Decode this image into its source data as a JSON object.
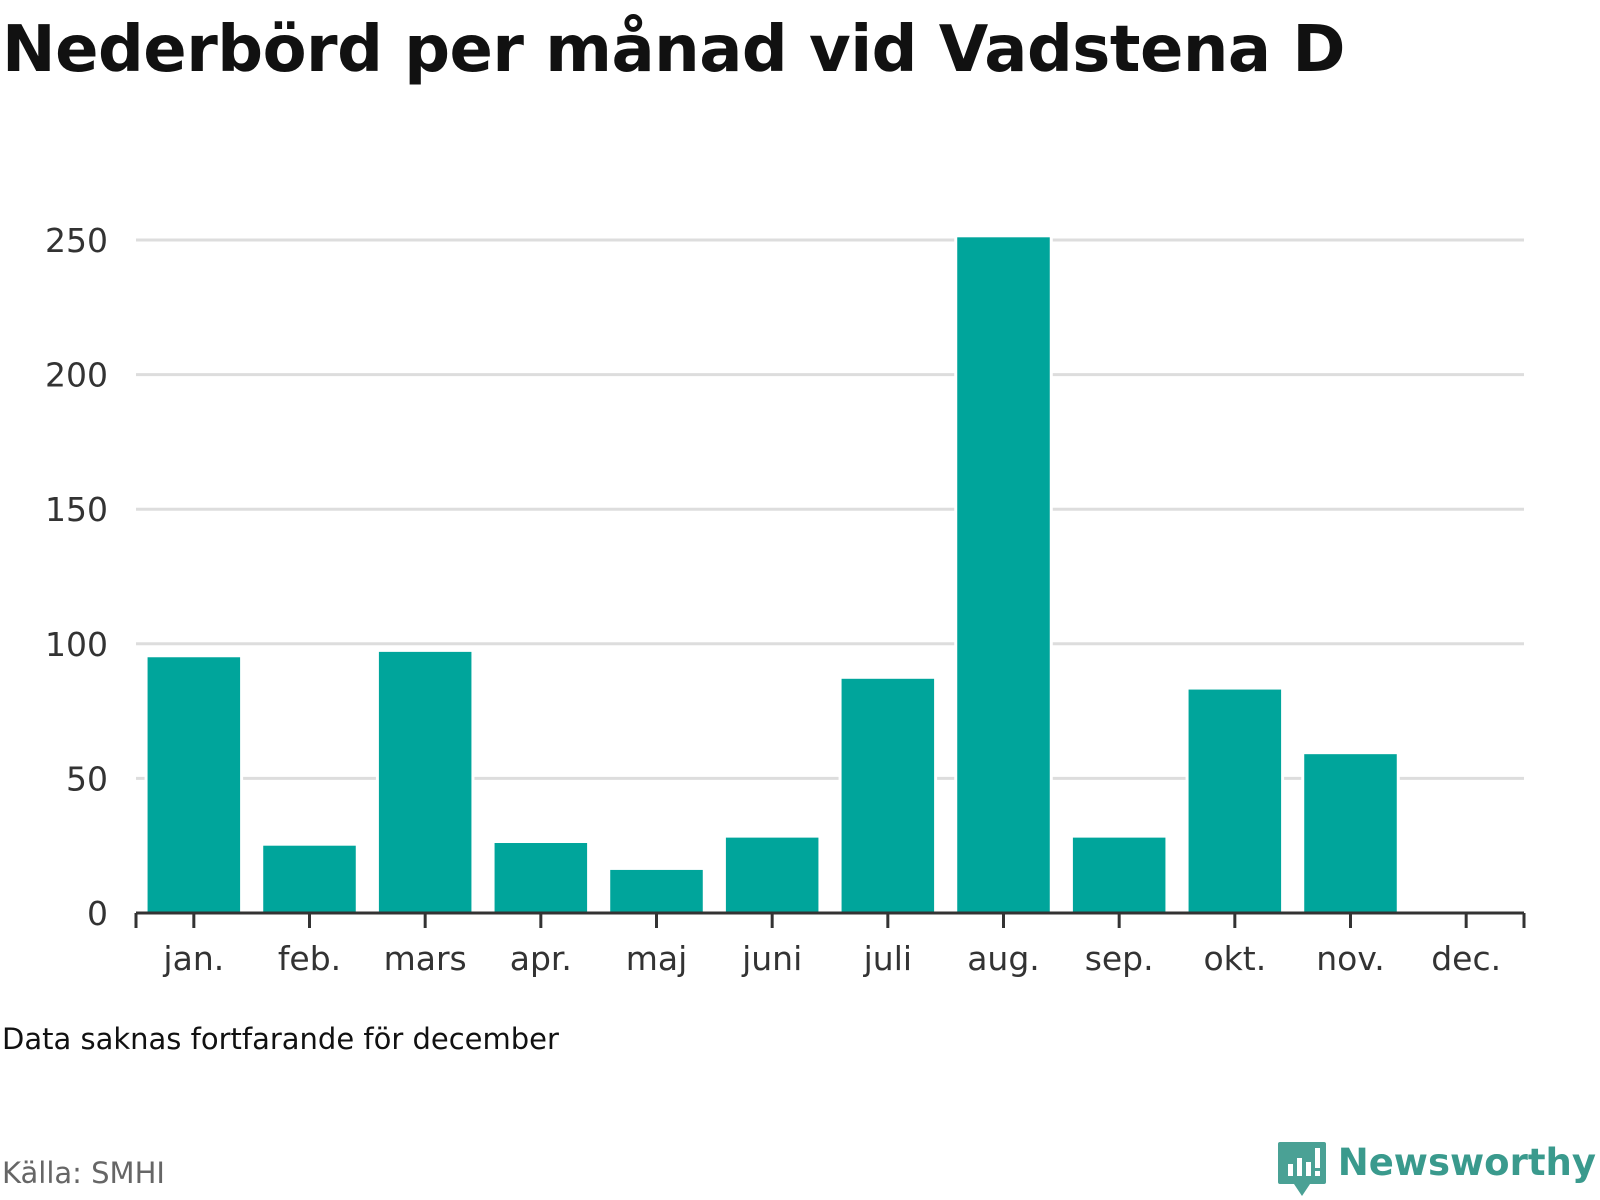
{
  "title": "Nederbörd per månad vid Vadstena D",
  "note": "Data saknas fortfarande för december",
  "source": "Källa: SMHI",
  "brand": {
    "name": "Newsworthy",
    "icon": "newsworthy-logo-icon"
  },
  "colors": {
    "bar": "#00a59b",
    "grid": "#dddddd",
    "axis": "#333333",
    "brand": "#3a9a8d",
    "source_text": "#666666"
  },
  "chart_data": {
    "type": "bar",
    "categories": [
      "jan.",
      "feb.",
      "mars",
      "apr.",
      "maj",
      "juni",
      "juli",
      "aug.",
      "sep.",
      "okt.",
      "nov.",
      "dec."
    ],
    "values": [
      95,
      25,
      97,
      26,
      16,
      28,
      87,
      251,
      28,
      83,
      59,
      null
    ],
    "yticks": [
      0,
      50,
      100,
      150,
      200,
      250
    ],
    "ylim": [
      0,
      250
    ],
    "xlabel": "",
    "ylabel": "",
    "grid": true,
    "legend": "none"
  }
}
